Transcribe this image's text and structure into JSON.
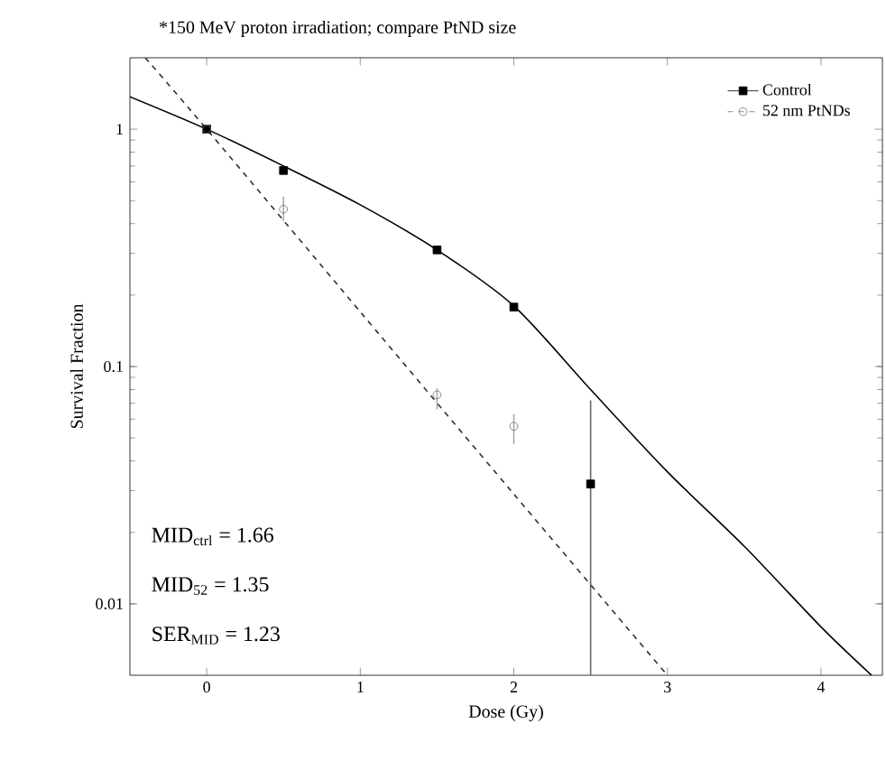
{
  "chart_data": {
    "type": "scatter",
    "title": "*150 MeV proton irradiation; compare PtND size",
    "xlabel": "Dose (Gy)",
    "ylabel": "Survival Fraction",
    "xlim": [
      -0.5,
      4.4
    ],
    "ylim": [
      0.005,
      2
    ],
    "xticks": [
      0,
      1,
      2,
      3,
      4
    ],
    "yticks": [
      0.01,
      0.1,
      1
    ],
    "log": "y",
    "legend": "top right",
    "grid": false,
    "annotations": [
      "MID$_{ctrl}$ = 1.66",
      "MID$_{52}$ = 1.35",
      "SER$_{MID}$ = 1.23"
    ],
    "series": [
      {
        "name": "Control",
        "marker": "square",
        "line_style": "solid",
        "color": "#000000",
        "x": [
          0,
          0.5,
          1.5,
          2,
          2.5
        ],
        "values": [
          1,
          0.67,
          0.31,
          0.178,
          0.032
        ],
        "errors": [
          null,
          null,
          null,
          null,
          [
            0.005,
            0.072
          ]
        ]
      },
      {
        "name": "52 nm PtNDs",
        "marker": "circle",
        "line_style": "dashed",
        "color": "#707070",
        "x": [
          0,
          0.5,
          1.5,
          2
        ],
        "values": [
          1,
          0.46,
          0.076,
          0.056
        ],
        "errors": [
          null,
          [
            0.41,
            0.52
          ],
          [
            0.066,
            0.081
          ],
          [
            0.047,
            0.063
          ]
        ]
      },
      {
        "type": "line",
        "line_style": "solid",
        "color": "#000000",
        "x": [
          -0.5,
          0,
          0.5,
          1,
          1.5,
          2,
          2.5,
          3,
          3.5,
          4,
          4.33
        ],
        "values": [
          1.37,
          1.0,
          0.7,
          0.48,
          0.31,
          0.18,
          0.08,
          0.036,
          0.0175,
          0.008,
          0.005
        ]
      },
      {
        "type": "line",
        "line_style": "dashed",
        "color": "#303030",
        "x": [
          -0.4,
          0,
          1,
          2,
          3
        ],
        "values": [
          2.0,
          1.0,
          0.17,
          0.029,
          0.005
        ]
      }
    ]
  }
}
